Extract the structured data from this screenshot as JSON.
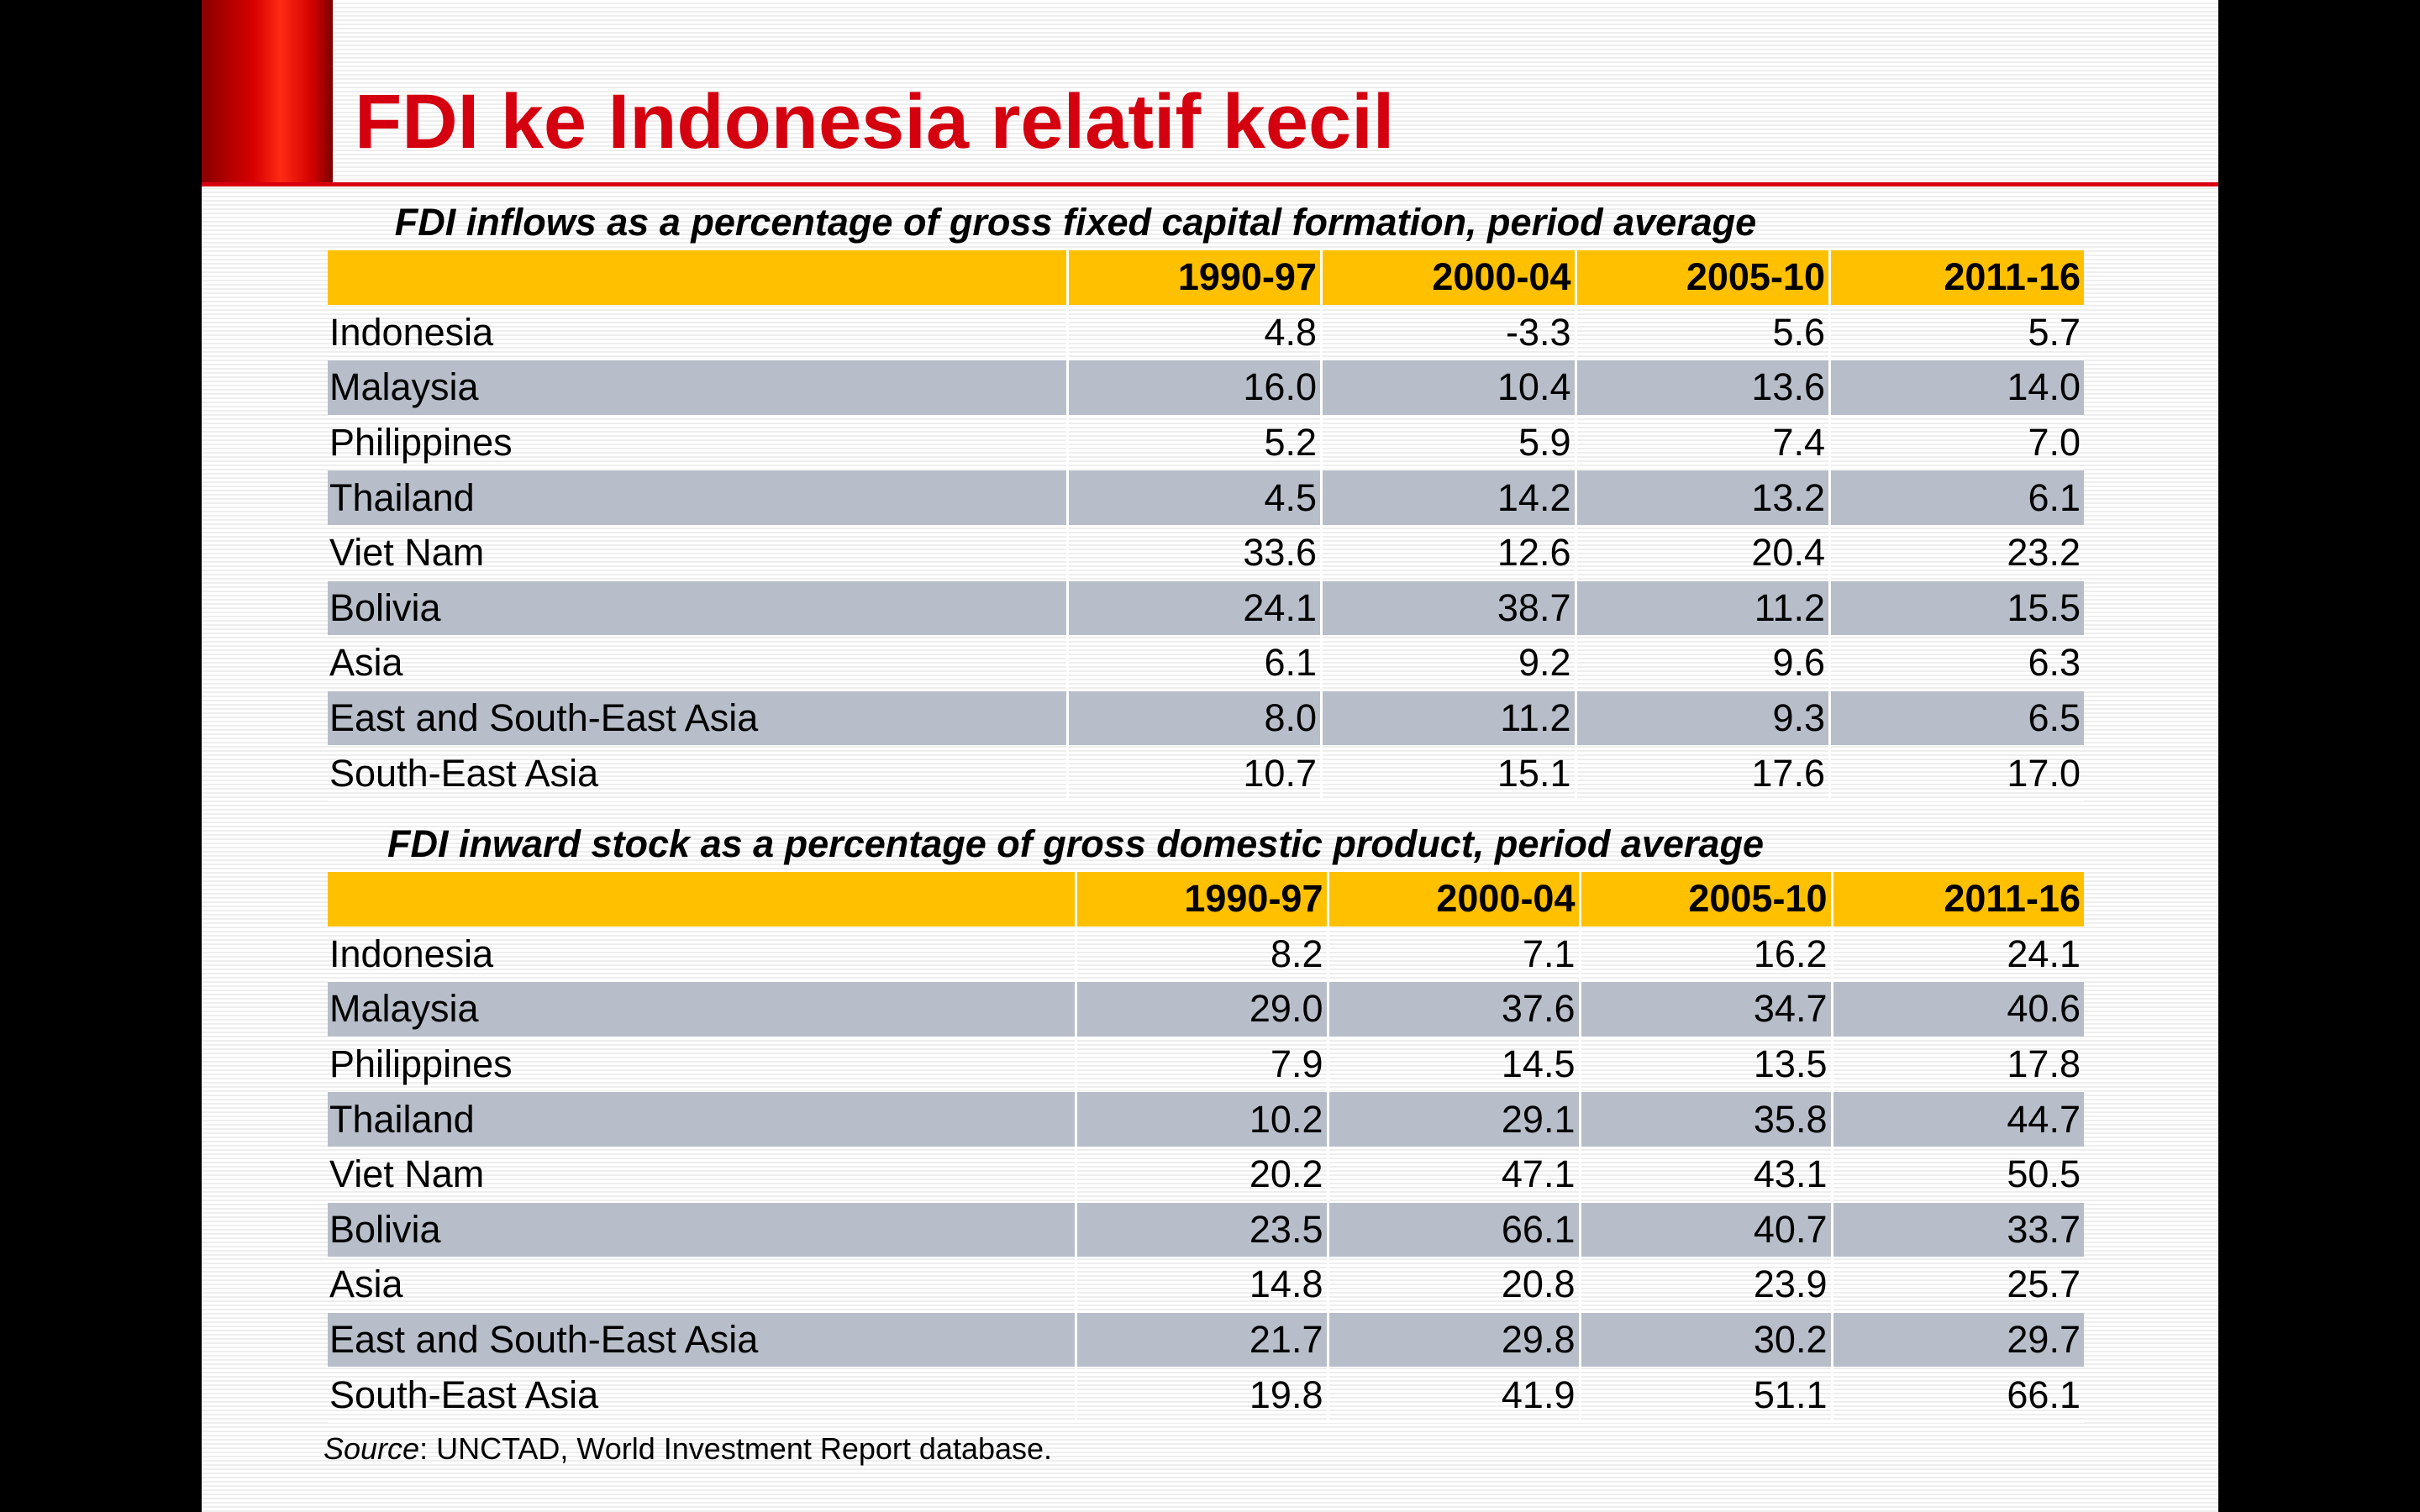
{
  "slide": {
    "title": "FDI ke Indonesia relatif kecil",
    "colors": {
      "title": "#d4000f",
      "accent": "#d80000",
      "header_fill": "#ffc000",
      "row_shade": "#b7bec9"
    }
  },
  "tables": [
    {
      "caption": "FDI inflows as a percentage of gross fixed capital formation, period average",
      "columns": [
        "1990-97",
        "2000-04",
        "2005-10",
        "2011-16"
      ],
      "rows": [
        {
          "name": "Indonesia",
          "values": [
            "4.8",
            "-3.3",
            "5.6",
            "5.7"
          ]
        },
        {
          "name": "Malaysia",
          "values": [
            "16.0",
            "10.4",
            "13.6",
            "14.0"
          ]
        },
        {
          "name": "Philippines",
          "values": [
            "5.2",
            "5.9",
            "7.4",
            "7.0"
          ]
        },
        {
          "name": "Thailand",
          "values": [
            "4.5",
            "14.2",
            "13.2",
            "6.1"
          ]
        },
        {
          "name": "Viet Nam",
          "values": [
            "33.6",
            "12.6",
            "20.4",
            "23.2"
          ]
        },
        {
          "name": "Bolivia",
          "values": [
            "24.1",
            "38.7",
            "11.2",
            "15.5"
          ]
        },
        {
          "name": "Asia",
          "values": [
            "6.1",
            "9.2",
            "9.6",
            "6.3"
          ]
        },
        {
          "name": "East and South-East Asia",
          "values": [
            "8.0",
            "11.2",
            "9.3",
            "6.5"
          ]
        },
        {
          "name": "South-East Asia",
          "values": [
            "10.7",
            "15.1",
            "17.6",
            "17.0"
          ]
        }
      ]
    },
    {
      "caption": "FDI inward stock as a percentage of gross domestic product, period average",
      "columns": [
        "1990-97",
        "2000-04",
        "2005-10",
        "2011-16"
      ],
      "rows": [
        {
          "name": "Indonesia",
          "values": [
            "8.2",
            "7.1",
            "16.2",
            "24.1"
          ]
        },
        {
          "name": "Malaysia",
          "values": [
            "29.0",
            "37.6",
            "34.7",
            "40.6"
          ]
        },
        {
          "name": "Philippines",
          "values": [
            "7.9",
            "14.5",
            "13.5",
            "17.8"
          ]
        },
        {
          "name": "Thailand",
          "values": [
            "10.2",
            "29.1",
            "35.8",
            "44.7"
          ]
        },
        {
          "name": "Viet Nam",
          "values": [
            "20.2",
            "47.1",
            "43.1",
            "50.5"
          ]
        },
        {
          "name": "Bolivia",
          "values": [
            "23.5",
            "66.1",
            "40.7",
            "33.7"
          ]
        },
        {
          "name": "Asia",
          "values": [
            "14.8",
            "20.8",
            "23.9",
            "25.7"
          ]
        },
        {
          "name": "East and South-East Asia",
          "values": [
            "21.7",
            "29.8",
            "30.2",
            "29.7"
          ]
        },
        {
          "name": "South-East Asia",
          "values": [
            "19.8",
            "41.9",
            "51.1",
            "66.1"
          ]
        }
      ]
    }
  ],
  "source": {
    "label": "Source",
    "text": ": UNCTAD, World Investment Report database."
  }
}
